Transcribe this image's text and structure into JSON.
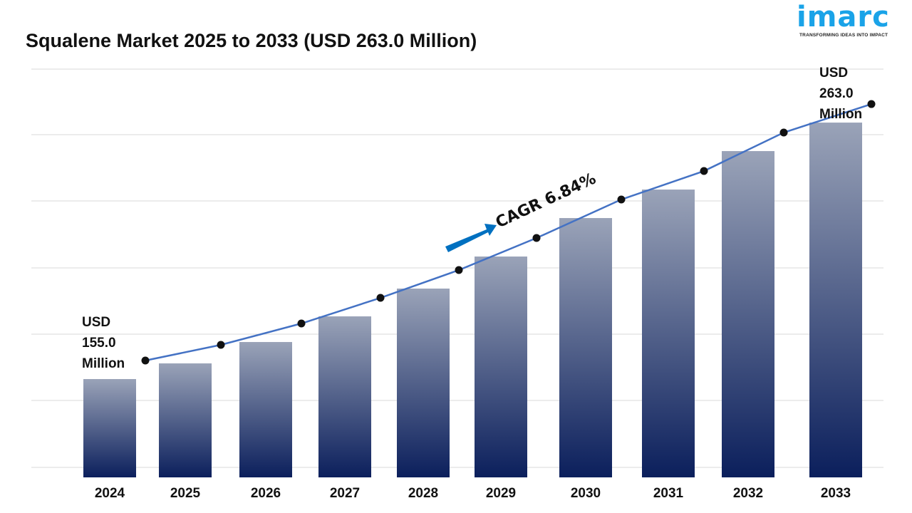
{
  "title": "Squalene Market 2025 to 2033 (USD 263.0 Million)",
  "logo": {
    "word": "imarc",
    "tagline": "TRANSFORMING IDEAS INTO IMPACT"
  },
  "chart_data": {
    "type": "bar",
    "title": "Squalene Market 2025 to 2033 (USD 263.0 Million)",
    "categories": [
      "2024",
      "2025",
      "2026",
      "2027",
      "2028",
      "2029",
      "2030",
      "2031",
      "2032",
      "2033"
    ],
    "values": [
      155.0,
      161.6,
      170.6,
      181.4,
      193.1,
      206.6,
      222.8,
      234.8,
      251.0,
      263.0
    ],
    "overlay": "line",
    "grid": true,
    "annotations": {
      "start": [
        "USD",
        "155.0",
        "Million"
      ],
      "end": [
        "USD",
        "263.0",
        "Million"
      ],
      "cagr": "CAGR 6.84%"
    },
    "colors": {
      "bar_top": "#9aa3b8",
      "bar_bottom": "#0b1f5c",
      "line": "#4472c4",
      "marker": "#111111",
      "arrow": "#0070c0",
      "grid": "#d9d9d9"
    }
  }
}
